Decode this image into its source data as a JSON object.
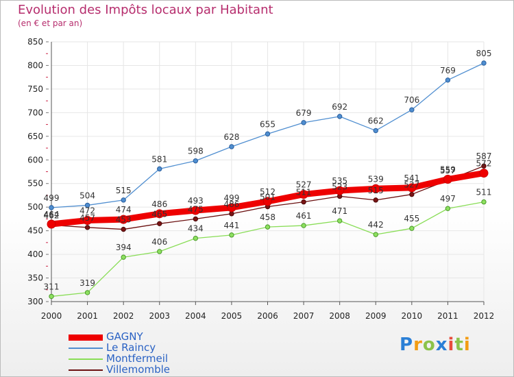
{
  "header": {
    "title": "Evolution des Impôts locaux par Habitant",
    "subtitle": "(en € et par an)"
  },
  "logo": {
    "letters": [
      "P",
      "r",
      "o",
      "x",
      "i",
      "t",
      "i"
    ]
  },
  "colors": {
    "gagny": "#ee0000",
    "le_raincy": "#4f8ed0",
    "montfermeil": "#88dd55",
    "villemomble": "#6b1010",
    "axis_red": "#cc2244",
    "grid": "#e6e6e6"
  },
  "chart_data": {
    "type": "line",
    "title": "Evolution des Impôts locaux par Habitant",
    "subtitle": "(en € et par an)",
    "xlabel": "",
    "ylabel": "",
    "grid": true,
    "legend_position": "bottom-left",
    "x": [
      2000,
      2001,
      2002,
      2003,
      2004,
      2005,
      2006,
      2007,
      2008,
      2009,
      2010,
      2011,
      2012
    ],
    "ylim": [
      300,
      850
    ],
    "yticks": [
      300,
      350,
      400,
      450,
      500,
      550,
      600,
      650,
      700,
      750,
      800,
      850
    ],
    "series": [
      {
        "name": "GAGNY",
        "values": [
          464,
          472,
          474,
          486,
          493,
          499,
          512,
          527,
          535,
          539,
          541,
          559,
          572
        ]
      },
      {
        "name": "Le Raincy",
        "values": [
          499,
          504,
          515,
          581,
          598,
          628,
          655,
          679,
          692,
          662,
          706,
          769,
          805
        ]
      },
      {
        "name": "Montfermeil",
        "values": [
          311,
          319,
          394,
          406,
          434,
          441,
          458,
          461,
          471,
          442,
          455,
          497,
          511
        ]
      },
      {
        "name": "Villemomble",
        "values": [
          462,
          457,
          453,
          465,
          475,
          486,
          501,
          511,
          523,
          515,
          527,
          557,
          587
        ]
      }
    ]
  }
}
